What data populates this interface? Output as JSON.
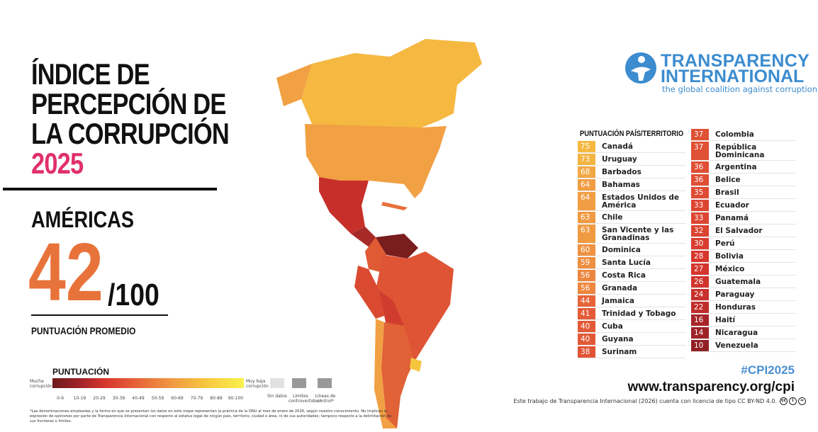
{
  "title": {
    "line1": "ÍNDICE DE",
    "line2": "PERCEPCIÓN DE",
    "line3": "LA CORRUPCIÓN",
    "year": "2025"
  },
  "region": "AMÉRICAS",
  "average": {
    "score": "42",
    "out_of": "/100",
    "label": "PUNTUACIÓN PROMEDIO"
  },
  "logo": {
    "line1": "TRANSPARENCY",
    "line2": "INTERNATIONAL",
    "tagline": "the global coalition against corruption"
  },
  "table": {
    "header": "PUNTUACIÓN PAÍS/TERRITORIO",
    "left": [
      {
        "s": 75,
        "c": "Canadá"
      },
      {
        "s": 73,
        "c": "Uruguay"
      },
      {
        "s": 68,
        "c": "Barbados"
      },
      {
        "s": 64,
        "c": "Bahamas"
      },
      {
        "s": 64,
        "c": "Estados Unidos de América"
      },
      {
        "s": 63,
        "c": "Chile"
      },
      {
        "s": 63,
        "c": "San Vicente y las Granadinas"
      },
      {
        "s": 60,
        "c": "Dominica"
      },
      {
        "s": 59,
        "c": "Santa Lucía"
      },
      {
        "s": 56,
        "c": "Costa Rica"
      },
      {
        "s": 56,
        "c": "Granada"
      },
      {
        "s": 44,
        "c": "Jamaica"
      },
      {
        "s": 41,
        "c": "Trinidad y Tobago"
      },
      {
        "s": 40,
        "c": "Cuba"
      },
      {
        "s": 40,
        "c": "Guyana"
      },
      {
        "s": 38,
        "c": "Surinam"
      }
    ],
    "right": [
      {
        "s": 37,
        "c": "Colombia"
      },
      {
        "s": 37,
        "c": "República Dominicana"
      },
      {
        "s": 36,
        "c": "Argentina"
      },
      {
        "s": 36,
        "c": "Belice"
      },
      {
        "s": 35,
        "c": "Brasil"
      },
      {
        "s": 33,
        "c": "Ecuador"
      },
      {
        "s": 33,
        "c": "Panamá"
      },
      {
        "s": 32,
        "c": "El Salvador"
      },
      {
        "s": 30,
        "c": "Perú"
      },
      {
        "s": 28,
        "c": "Bolivia"
      },
      {
        "s": 27,
        "c": "México"
      },
      {
        "s": 26,
        "c": "Guatemala"
      },
      {
        "s": 24,
        "c": "Paraguay"
      },
      {
        "s": 22,
        "c": "Honduras"
      },
      {
        "s": 16,
        "c": "Haití"
      },
      {
        "s": 14,
        "c": "Nicaragua"
      },
      {
        "s": 10,
        "c": "Venezuela"
      }
    ]
  },
  "legend": {
    "title": "PUNTUACIÓN",
    "low": "Mucha corrupción",
    "high": "Muy baja corrupción",
    "ticks": [
      "0-9",
      "10-19",
      "20-29",
      "30-39",
      "40-49",
      "50-59",
      "60-69",
      "70-79",
      "80-89",
      "90-100"
    ],
    "no_data": "Sin datos",
    "disputed": "Límites controvertidos*",
    "control": "Líneas de control*"
  },
  "note": "*Las denominaciones empleadas y la forma en que se presentan los datos en este mapa representan la práctica de la ONU al mes de enero de 2026, según nuestro conocimiento. No implican la expresión de opiniones por parte de Transparencia Internacional con respecto al estatus legal de ningún país, territorio, ciudad o área, ni de sus autoridades; tampoco respecto a la delimitación de sus fronteras o límites.",
  "footer": {
    "hashtag": "#CPI2025",
    "url": "www.transparency.org/cpi",
    "license": "Este trabajo de Transparencia Internacional (2026) cuenta con licencia de tipo CC BY-ND 4.0."
  },
  "colors": {
    "accent": "#e0306a",
    "avg": "#e8733a",
    "brand": "#3c8ccf"
  }
}
